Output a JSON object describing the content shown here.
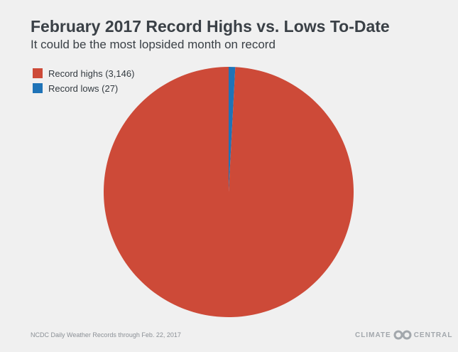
{
  "title": "February 2017 Record Highs vs. Lows To-Date",
  "subtitle": "It could be the most lopsided month on record",
  "chart_data": {
    "type": "pie",
    "title": "February 2017 Record Highs vs. Lows To-Date",
    "subtitle": "It could be the most lopsided month on record",
    "legend_position": "top-left",
    "slices": [
      {
        "label": "Record highs (3,146)",
        "value": 3146,
        "color": "#cd4a38"
      },
      {
        "label": "Record lows (27)",
        "value": 27,
        "color": "#1f73b7"
      }
    ]
  },
  "footer": {
    "source": "NCDC Daily Weather Records through Feb. 22, 2017",
    "logo_left": "CLIMATE",
    "logo_right": "CENTRAL"
  }
}
